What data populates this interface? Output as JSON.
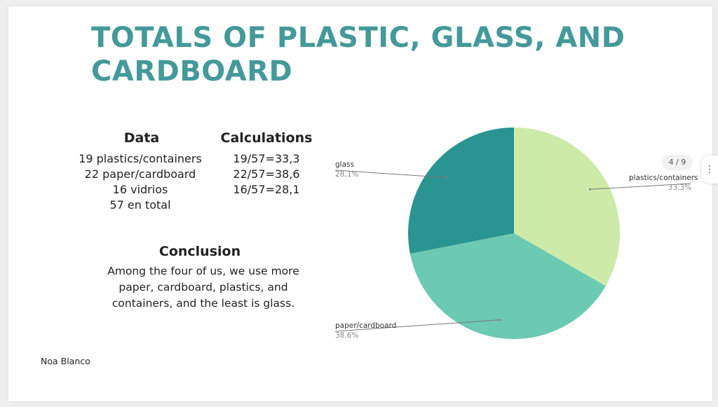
{
  "slide": {
    "title": "TOTALS OF PLASTIC, GLASS, AND CARDBOARD",
    "data_heading": "Data",
    "calc_heading": "Calculations",
    "data_rows": [
      "19 plastics/containers",
      "22 paper/cardboard",
      "16 vidrios",
      "57 en total"
    ],
    "calc_rows": [
      "19/57=33,3",
      "22/57=38,6",
      "16/57=28,1"
    ],
    "conclusion_heading": "Conclusion",
    "conclusion_lines": [
      "Among the four of us, we use more",
      "paper, cardboard, plastics, and",
      "containers, and the least is glass."
    ],
    "author": "Noa Blanco"
  },
  "viewer": {
    "page_indicator": "4 / 9",
    "more_icon": "vertical-ellipsis-icon",
    "more_glyph": "⋮"
  },
  "chart_data": {
    "type": "pie",
    "title": "",
    "slices": [
      {
        "label": "plastics/containers",
        "value": 33.3,
        "pct_label": "33,3%",
        "color": "#cdeaa8"
      },
      {
        "label": "paper/cardboard",
        "value": 38.6,
        "pct_label": "38,6%",
        "color": "#6cc9b2"
      },
      {
        "label": "glass",
        "value": 28.1,
        "pct_label": "28,1%",
        "color": "#2a9490"
      }
    ],
    "start_angle_deg": 0,
    "direction": "clockwise",
    "legend": "none",
    "label_style": "leader-lines"
  }
}
